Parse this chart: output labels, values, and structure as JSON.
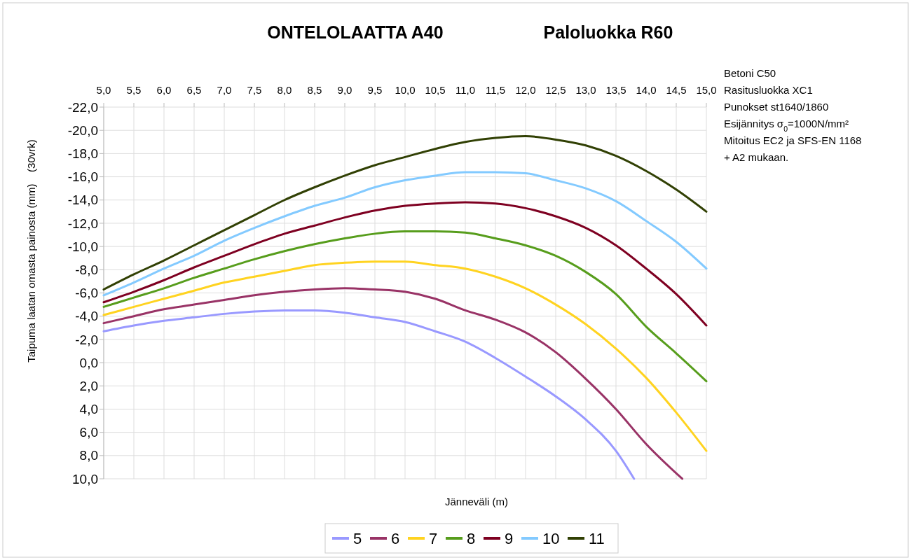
{
  "chart_data": {
    "type": "line",
    "title": "ONTELOLAATTA A40",
    "subtitle": "Paloluokka R60",
    "xlabel": "Jänneväli (m)",
    "ylabel": "Taipuma laatan omasta painosta (mm)    (30vrk)",
    "annotations": [
      "Betoni C50",
      "Rasitusluokka XC1",
      "Punokset st1640/1860",
      "Esijännitys σ$_{0}$=1000N/mm²",
      "Mitoitus EC2 ja SFS-EN 1168",
      "+ A2 mukaan."
    ],
    "xlim": [
      5,
      15
    ],
    "xticks": [
      {
        "value": 5,
        "label": "5,0"
      },
      {
        "value": 5.5,
        "label": "5,5"
      },
      {
        "value": 6,
        "label": "6,0"
      },
      {
        "value": 6.5,
        "label": "6,5"
      },
      {
        "value": 7,
        "label": "7,0"
      },
      {
        "value": 7.5,
        "label": "7,5"
      },
      {
        "value": 8,
        "label": "8,0"
      },
      {
        "value": 8.5,
        "label": "8,5"
      },
      {
        "value": 9,
        "label": "9,0"
      },
      {
        "value": 9.5,
        "label": "9,5"
      },
      {
        "value": 10,
        "label": "10,0"
      },
      {
        "value": 10.5,
        "label": "10,5"
      },
      {
        "value": 11,
        "label": "11,0"
      },
      {
        "value": 11.5,
        "label": "11,5"
      },
      {
        "value": 12,
        "label": "12,0"
      },
      {
        "value": 12.5,
        "label": "12,5"
      },
      {
        "value": 13,
        "label": "13,0"
      },
      {
        "value": 13.5,
        "label": "13,5"
      },
      {
        "value": 14,
        "label": "14,0"
      },
      {
        "value": 14.5,
        "label": "14,5"
      },
      {
        "value": 15,
        "label": "15,0"
      }
    ],
    "ylim": [
      10,
      -22
    ],
    "yticks": [
      {
        "value": -22,
        "label": "-22,0"
      },
      {
        "value": -20,
        "label": "-20,0"
      },
      {
        "value": -18,
        "label": "-18,0"
      },
      {
        "value": -16,
        "label": "-16,0"
      },
      {
        "value": -14,
        "label": "-14,0"
      },
      {
        "value": -12,
        "label": "-12,0"
      },
      {
        "value": -10,
        "label": "-10,0"
      },
      {
        "value": -8,
        "label": "-8,0"
      },
      {
        "value": -6,
        "label": "-6,0"
      },
      {
        "value": -4,
        "label": "-4,0"
      },
      {
        "value": -2,
        "label": "-2,0"
      },
      {
        "value": 0,
        "label": "0,0"
      },
      {
        "value": 2,
        "label": "2,0"
      },
      {
        "value": 4,
        "label": "4,0"
      },
      {
        "value": 6,
        "label": "6,0"
      },
      {
        "value": 8,
        "label": "8,0"
      },
      {
        "value": 10,
        "label": "10,0"
      }
    ],
    "grid": true,
    "legend": "bottom",
    "marker": "none",
    "line_style": "solid",
    "x": [
      5,
      5.5,
      6,
      6.5,
      7,
      7.5,
      8,
      8.5,
      9,
      9.5,
      10,
      10.5,
      11,
      11.5,
      12,
      12.5,
      13,
      13.5,
      14,
      14.5,
      15
    ],
    "series": [
      {
        "name": "5",
        "color": "#9999ff",
        "x": [
          5,
          5.5,
          6,
          6.5,
          7,
          7.5,
          8,
          8.5,
          9,
          9.5,
          10,
          10.5,
          11,
          11.5,
          12,
          12.5,
          13,
          13.5,
          13.8
        ],
        "values": [
          -2.7,
          -3.2,
          -3.6,
          -3.9,
          -4.2,
          -4.4,
          -4.5,
          -4.5,
          -4.3,
          -3.9,
          -3.5,
          -2.7,
          -1.8,
          -0.4,
          1.2,
          2.9,
          4.9,
          7.6,
          10
        ]
      },
      {
        "name": "6",
        "color": "#993366",
        "x": [
          5,
          5.5,
          6,
          6.5,
          7,
          7.5,
          8,
          8.5,
          9,
          9.5,
          10,
          10.5,
          11,
          11.5,
          12,
          12.5,
          13,
          13.5,
          14,
          14.6
        ],
        "values": [
          -3.4,
          -4,
          -4.6,
          -5,
          -5.4,
          -5.8,
          -6.1,
          -6.3,
          -6.4,
          -6.3,
          -6.1,
          -5.5,
          -4.5,
          -3.7,
          -2.6,
          -0.9,
          1.4,
          4,
          7,
          10
        ]
      },
      {
        "name": "7",
        "color": "#ffd320",
        "values": [
          -4.1,
          -4.8,
          -5.5,
          -6.2,
          -6.9,
          -7.4,
          -7.9,
          -8.4,
          -8.6,
          -8.7,
          -8.7,
          -8.4,
          -8.1,
          -7.4,
          -6.4,
          -5,
          -3.3,
          -1.2,
          1.3,
          4.3,
          7.6
        ]
      },
      {
        "name": "8",
        "color": "#579d1c",
        "values": [
          -4.8,
          -5.6,
          -6.4,
          -7.3,
          -8.1,
          -8.9,
          -9.6,
          -10.2,
          -10.7,
          -11.1,
          -11.3,
          -11.3,
          -11.2,
          -10.7,
          -10.1,
          -9.2,
          -7.8,
          -5.9,
          -3.1,
          -0.8,
          1.6
        ]
      },
      {
        "name": "9",
        "color": "#7e0021",
        "values": [
          -5.2,
          -6.1,
          -7.1,
          -8.2,
          -9.2,
          -10.2,
          -11.1,
          -11.8,
          -12.5,
          -13.1,
          -13.5,
          -13.7,
          -13.8,
          -13.7,
          -13.3,
          -12.6,
          -11.6,
          -10.1,
          -8.1,
          -5.9,
          -3.2
        ]
      },
      {
        "name": "10",
        "color": "#83caff",
        "values": [
          -5.8,
          -6.9,
          -8.1,
          -9.2,
          -10.5,
          -11.6,
          -12.6,
          -13.5,
          -14.2,
          -15.1,
          -15.7,
          -16.1,
          -16.4,
          -16.4,
          -16.3,
          -15.7,
          -15,
          -13.9,
          -12.2,
          -10.4,
          -8.1
        ]
      },
      {
        "name": "11",
        "color": "#314004",
        "values": [
          -6.3,
          -7.6,
          -8.8,
          -10.1,
          -11.4,
          -12.7,
          -14,
          -15.1,
          -16.1,
          -17,
          -17.7,
          -18.4,
          -19,
          -19.35,
          -19.5,
          -19.2,
          -18.7,
          -17.8,
          -16.5,
          -14.9,
          -13
        ]
      }
    ]
  }
}
